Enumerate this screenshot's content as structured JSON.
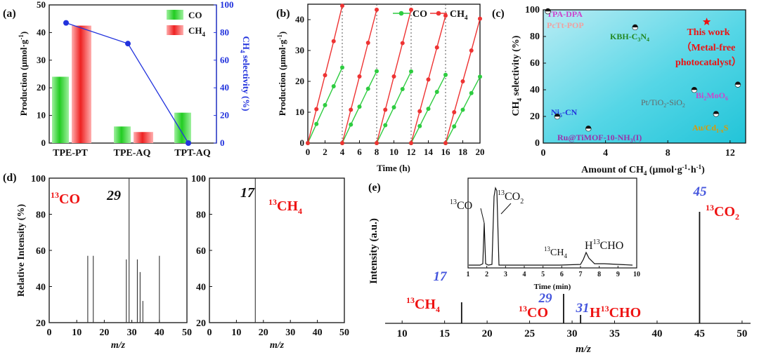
{
  "panels": {
    "a": "(a)",
    "b": "(b)",
    "c": "(c)",
    "d": "(d)",
    "e": "(e)"
  },
  "chart_data": [
    {
      "id": "a",
      "type": "bar",
      "categories": [
        "TPE-PT",
        "TPE-AQ",
        "TPT-AQ"
      ],
      "series": [
        {
          "name": "CO",
          "values": [
            24,
            6,
            11
          ],
          "color": "#2ecc40"
        },
        {
          "name": "CH4",
          "values": [
            42.5,
            4,
            0
          ],
          "color": "#ee3333"
        }
      ],
      "line_series": {
        "values": [
          87,
          72,
          0
        ],
        "color": "#2233dd"
      },
      "ylabel": "Production (μmol·g⁻¹)",
      "y2label": "CH4 selectivity (%)",
      "ylim": [
        0,
        50
      ],
      "yticks": [
        0,
        10,
        20,
        30,
        40,
        50
      ],
      "y2lim": [
        0,
        100
      ],
      "y2ticks": [
        0,
        20,
        40,
        60,
        80,
        100
      ],
      "legend": "top-right"
    },
    {
      "id": "b",
      "type": "line",
      "xlabel": "Time (h)",
      "ylabel": "Production (μmol·g⁻¹)",
      "xlim": [
        0,
        20
      ],
      "xticks": [
        0,
        2,
        4,
        6,
        8,
        10,
        12,
        14,
        16,
        18,
        20
      ],
      "ylim": [
        0,
        45
      ],
      "yticks": [
        0,
        10,
        20,
        30,
        40
      ],
      "series": [
        {
          "name": "CO",
          "color": "#2ecc40",
          "cycles": [
            [
              0,
              6.2,
              12.3,
              18.4,
              24.5
            ],
            [
              0,
              6.0,
              11.8,
              17.6,
              23.3
            ],
            [
              0,
              5.8,
              11.6,
              17.5,
              23.2
            ],
            [
              0,
              5.5,
              11.1,
              16.6,
              22.1
            ],
            [
              0,
              5.4,
              10.8,
              16.2,
              21.5
            ]
          ]
        },
        {
          "name": "CH4",
          "color": "#ee3333",
          "cycles": [
            [
              0,
              11,
              22,
              33,
              44.5
            ],
            [
              0,
              10.8,
              21.6,
              32.5,
              43.2
            ],
            [
              0,
              10.8,
              21.6,
              32.4,
              43.2
            ],
            [
              0,
              10.3,
              20.6,
              31,
              41.3
            ],
            [
              0,
              10,
              20,
              30,
              40.3
            ]
          ]
        }
      ],
      "cycle_starts": [
        0,
        4,
        8,
        12,
        16
      ],
      "cycle_dividers": [
        4,
        8,
        12,
        16
      ],
      "legend": "top"
    },
    {
      "id": "c",
      "type": "scatter",
      "xlabel": "Amount of CH4 (μmol·g⁻¹·h⁻¹)",
      "ylabel": "CH4 selectivity (%)",
      "xlim": [
        0,
        13
      ],
      "xticks": [
        0,
        4,
        8,
        12
      ],
      "ylim": [
        0,
        100
      ],
      "yticks": [
        0,
        20,
        40,
        60,
        80,
        100
      ],
      "points": [
        {
          "label": "TPA-DPA",
          "x": 0.3,
          "y": 99,
          "color": "#cc44cc"
        },
        {
          "label": "PcTt-POP",
          "x": 0.3,
          "y": 99,
          "color": "#cc44cc"
        },
        {
          "label": "KBH-C3N4",
          "x": 5.9,
          "y": 87,
          "color": "#228822"
        },
        {
          "label": "Ni5-CN",
          "x": 0.9,
          "y": 20,
          "color": "#2233dd"
        },
        {
          "label": "Ru@TiMOF-10-NH3(I)",
          "x": 2.9,
          "y": 11,
          "color": "#9933aa"
        },
        {
          "label": "Pt/TiO2-SiO2",
          "x": 9.7,
          "y": 40,
          "color": "#666666"
        },
        {
          "label": "Bi2MoO6",
          "x": 12.5,
          "y": 44,
          "color": "#cc44cc"
        },
        {
          "label": "Au/Cd1-xS",
          "x": 11.1,
          "y": 22,
          "color": "#dd9900"
        }
      ],
      "highlight": {
        "x": 10.5,
        "y": 91,
        "label_line1": "This work",
        "label_line2": "（Metal-free",
        "label_line3": "photocatalyst）",
        "color": "#ee1111"
      }
    },
    {
      "id": "d1",
      "type": "bar",
      "xlabel": "m/z",
      "ylabel": "Relative Intensity (%)",
      "xlim": [
        0,
        50
      ],
      "xticks": [
        0,
        10,
        20,
        30,
        40,
        50
      ],
      "ylim": [
        20,
        100
      ],
      "yticks": [
        20,
        40,
        60,
        80,
        100
      ],
      "peaks": [
        [
          14,
          57
        ],
        [
          16,
          57
        ],
        [
          28,
          55
        ],
        [
          29,
          100
        ],
        [
          32,
          55
        ],
        [
          33,
          48
        ],
        [
          34,
          32
        ],
        [
          40,
          57
        ]
      ],
      "species": "¹³CO",
      "peak_label": "29"
    },
    {
      "id": "d2",
      "type": "bar",
      "xlabel": "m/z",
      "xlim": [
        0,
        50
      ],
      "xticks": [
        0,
        10,
        20,
        30,
        40,
        50
      ],
      "ylim": [
        20,
        100
      ],
      "yticks": [
        20,
        40,
        60,
        80,
        100
      ],
      "peaks": [
        [
          17,
          100
        ]
      ],
      "species": "¹³CH4",
      "peak_label": "17"
    },
    {
      "id": "e",
      "type": "bar",
      "xlabel": "m/z",
      "ylabel": "Intensity (a.u.)",
      "xlim": [
        8,
        51
      ],
      "xticks": [
        10,
        15,
        20,
        25,
        30,
        35,
        40,
        45,
        50
      ],
      "peaks": [
        [
          17,
          10
        ],
        [
          29,
          14
        ],
        [
          31,
          4
        ],
        [
          45,
          53
        ]
      ],
      "peak_labels": [
        {
          "x": 17,
          "num": "17",
          "species": "¹³CH4"
        },
        {
          "x": 29,
          "num": "29",
          "species": "¹³CO"
        },
        {
          "x": 31,
          "num": "31",
          "species": "H¹³CHO"
        },
        {
          "x": 45,
          "num": "45",
          "species": "¹³CO2"
        }
      ],
      "inset": {
        "xlabel": "Time (min)",
        "xlim": [
          1,
          10
        ],
        "xticks": [
          1,
          2,
          3,
          4,
          5,
          6,
          7,
          8,
          9,
          10
        ],
        "labels": [
          "¹³CO",
          "¹³CO2",
          "¹³CH4",
          "H¹³CHO"
        ]
      }
    }
  ]
}
